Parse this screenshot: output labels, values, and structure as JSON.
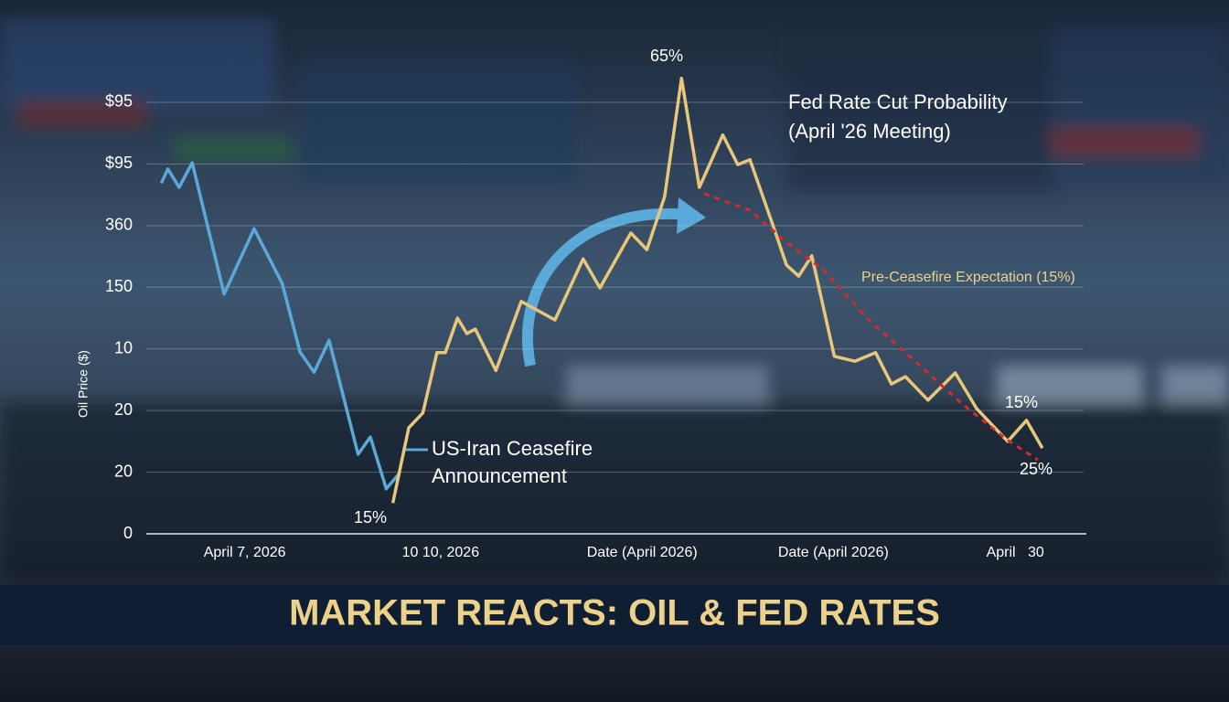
{
  "chart_data": {
    "type": "line",
    "title": "MARKET REACTS: OIL & FED RATES",
    "y_label": "Oil Price ($)",
    "annotations": [
      "65%",
      "Fed Rate Cut Probability",
      "(April '26 Meeting)",
      "Pre-Ceasefire Expectation (15%)",
      "US-Iran Ceasefire",
      "Announcement",
      "15%",
      "15%",
      "25%"
    ],
    "xlim": [
      0,
      10
    ],
    "xticks": [
      {
        "value": 1.05,
        "label": "April 7, 2026"
      },
      {
        "value": 3.14,
        "label": "10 10, 2026"
      },
      {
        "value": 5.29,
        "label": "Date (April 2026)"
      },
      {
        "value": 7.33,
        "label": "Date (April 2026)"
      },
      {
        "value": 9.27,
        "label": "April   30"
      }
    ],
    "ylim": [
      0,
      7.4
    ],
    "yticks": [
      {
        "value": 0,
        "label": "0"
      },
      {
        "value": 1,
        "label": "20"
      },
      {
        "value": 2,
        "label": "20"
      },
      {
        "value": 3,
        "label": "10"
      },
      {
        "value": 4,
        "label": "150"
      },
      {
        "value": 5,
        "label": "360"
      },
      {
        "value": 6,
        "label": "$95"
      },
      {
        "value": 7,
        "label": "$95"
      }
    ],
    "grid": true,
    "series": [
      {
        "color": "#5aa9d8",
        "style": "solid",
        "x": [
          0.16,
          0.23,
          0.35,
          0.49,
          0.83,
          1.15,
          1.45,
          1.64,
          1.79,
          1.95,
          2.26,
          2.39,
          2.56,
          2.7
        ],
        "values": [
          5.69,
          5.92,
          5.62,
          6.02,
          3.89,
          4.95,
          4.06,
          2.95,
          2.62,
          3.14,
          1.29,
          1.57,
          0.73,
          0.98
        ]
      },
      {
        "color": "#e8c77a",
        "style": "solid",
        "x": [
          2.63,
          2.8,
          2.95,
          3.1,
          3.19,
          3.32,
          3.42,
          3.51,
          3.73,
          4.0,
          4.36,
          4.66,
          4.84,
          5.17,
          5.34,
          5.53,
          5.71,
          5.9,
          6.15,
          6.31,
          6.44,
          6.68,
          6.83,
          6.96,
          7.1,
          7.34,
          7.56,
          7.78,
          7.95,
          8.1,
          8.34,
          8.63,
          8.86,
          9.19,
          9.39,
          9.56
        ],
        "values": [
          0.5,
          1.72,
          1.96,
          2.94,
          2.94,
          3.5,
          3.25,
          3.32,
          2.65,
          3.77,
          3.47,
          4.46,
          3.99,
          4.88,
          4.61,
          5.47,
          7.39,
          5.62,
          6.47,
          5.99,
          6.07,
          5.03,
          4.36,
          4.18,
          4.51,
          2.88,
          2.8,
          2.94,
          2.43,
          2.55,
          2.17,
          2.61,
          2.03,
          1.5,
          1.84,
          1.39
        ]
      },
      {
        "color": "#d42a2a",
        "style": "dashed",
        "x": [
          5.95,
          6.44,
          6.83,
          7.22,
          7.71,
          8.2,
          8.68,
          9.17,
          9.51
        ],
        "values": [
          5.52,
          5.25,
          4.73,
          4.29,
          3.47,
          2.8,
          2.14,
          1.54,
          1.2
        ]
      }
    ]
  }
}
